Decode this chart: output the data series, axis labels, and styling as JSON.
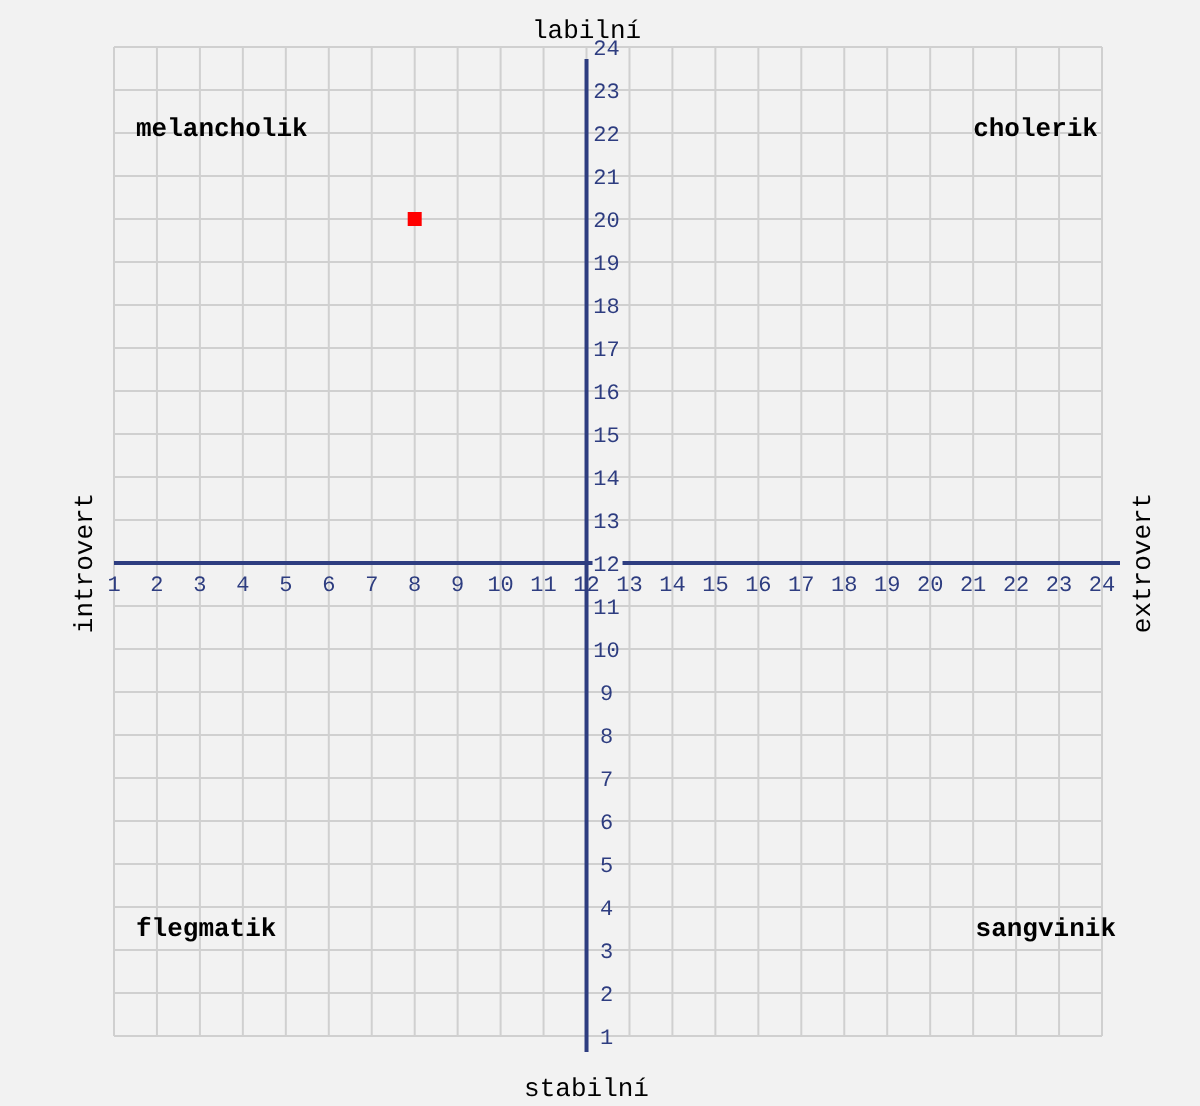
{
  "chart_data": {
    "type": "scatter",
    "annotations": [
      "melancholik",
      "cholerik",
      "flegmatik",
      "sangvinik",
      "labilní",
      "stabilní",
      "introvert",
      "extrovert"
    ],
    "x": [
      8
    ],
    "series": [
      {
        "color": "#ff0000",
        "values": [
          20
        ]
      }
    ],
    "xlim": [
      1,
      24
    ],
    "xticks": [
      1,
      2,
      3,
      4,
      5,
      6,
      7,
      8,
      9,
      10,
      11,
      12,
      13,
      14,
      15,
      16,
      17,
      18,
      19,
      20,
      21,
      22,
      23,
      24
    ],
    "ylim": [
      1,
      24
    ],
    "yticks": [
      1,
      2,
      3,
      4,
      5,
      6,
      7,
      8,
      9,
      10,
      11,
      12,
      13,
      14,
      15,
      16,
      17,
      18,
      19,
      20,
      21,
      22,
      23,
      24
    ],
    "grid": true,
    "marker": "square"
  }
}
